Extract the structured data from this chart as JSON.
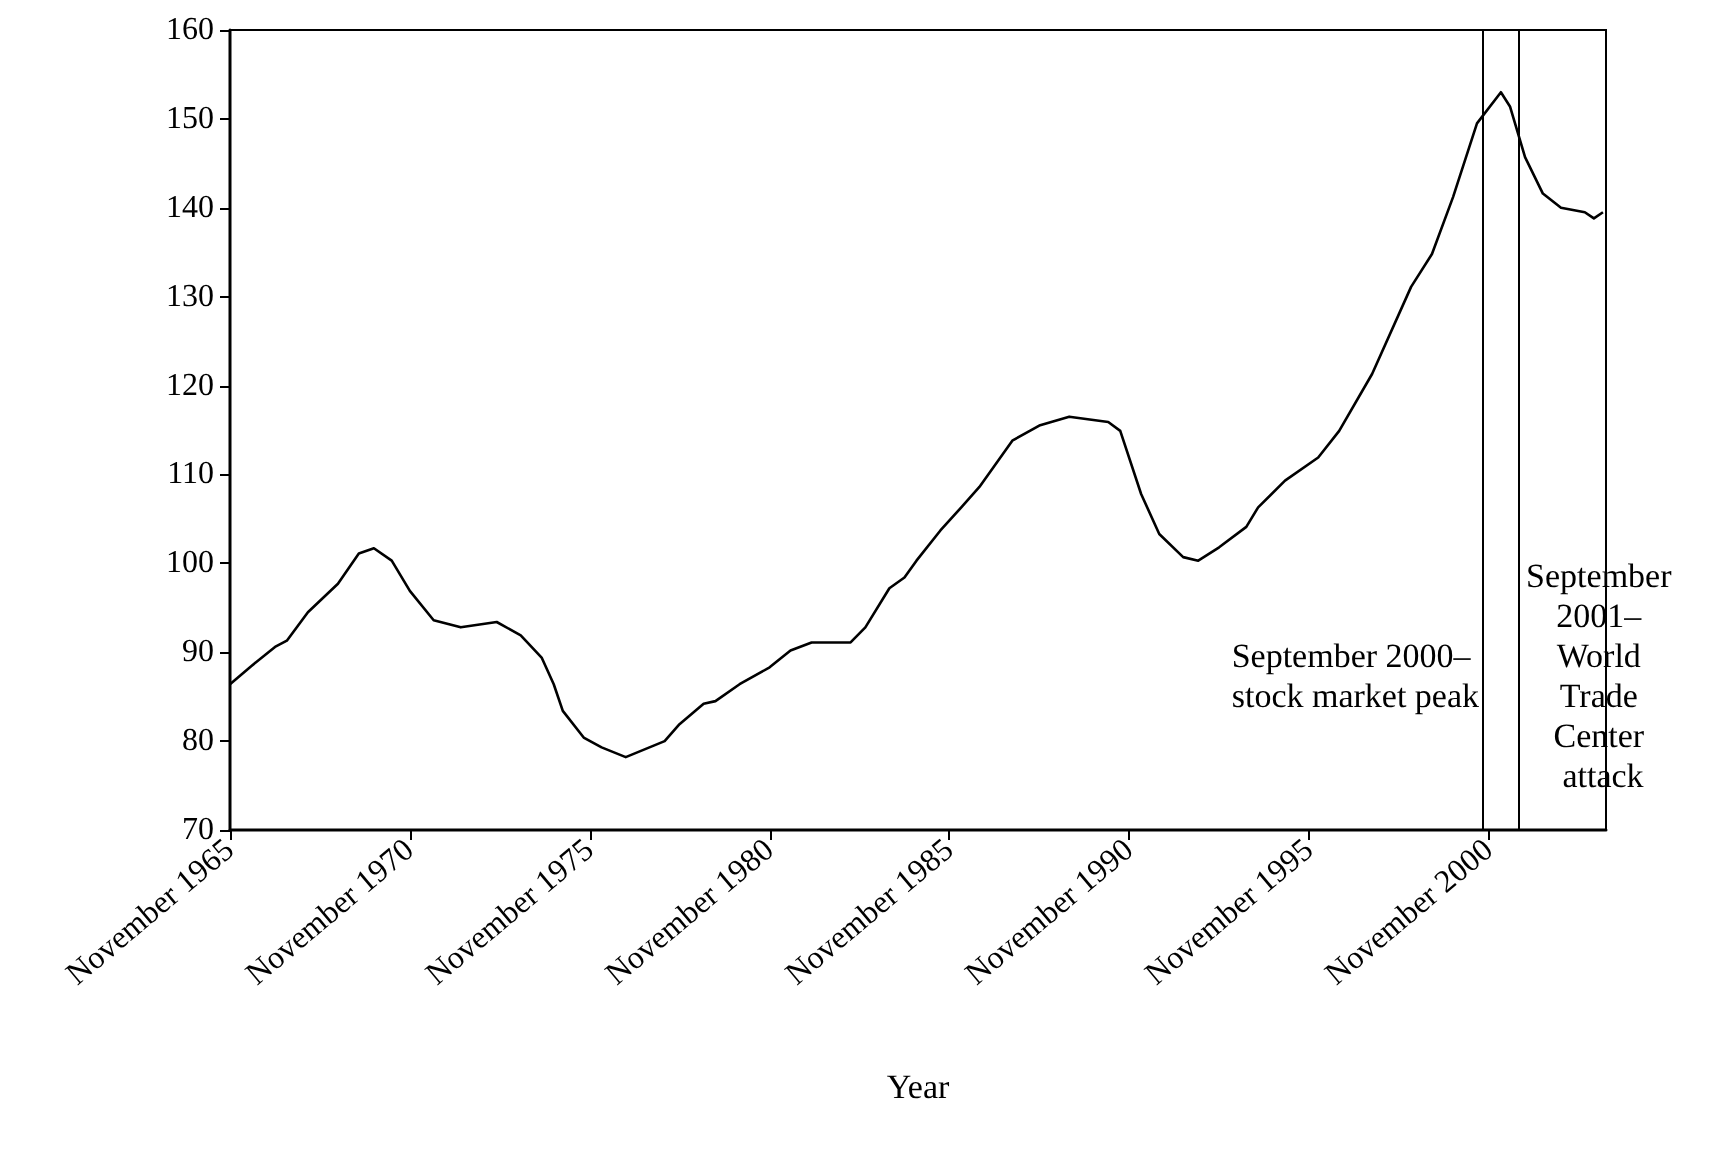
{
  "chart_data": {
    "type": "line",
    "xlabel": "Year",
    "x": [
      "1965-11",
      "1966-06",
      "1967-02",
      "1967-06",
      "1968-01",
      "1968-11",
      "1969-06",
      "1969-11",
      "1970-05",
      "1970-11",
      "1971-07",
      "1972-04",
      "1973-04",
      "1973-12",
      "1974-07",
      "1974-11",
      "1975-02",
      "1975-09",
      "1976-03",
      "1976-11",
      "1977-12",
      "1978-05",
      "1979-01",
      "1979-05",
      "1980-01",
      "1980-11",
      "1981-06",
      "1982-01",
      "1983-02",
      "1983-07",
      "1984-03",
      "1984-08",
      "1984-12",
      "1985-08",
      "1986-03",
      "1986-09",
      "1987-08",
      "1988-05",
      "1989-03",
      "1990-04",
      "1990-08",
      "1991-03",
      "1991-09",
      "1992-05",
      "1992-10",
      "1993-05",
      "1994-02",
      "1994-06",
      "1995-03",
      "1996-02",
      "1996-09",
      "1997-08",
      "1998-09",
      "1999-04",
      "1999-11",
      "2000-07",
      "2001-03",
      "2001-06",
      "2001-11",
      "2002-05",
      "2002-11",
      "2003-07",
      "2003-10",
      "2004-01"
    ],
    "series": [
      {
        "color": "#000000",
        "values": [
          86.4,
          88.4,
          90.6,
          91.3,
          94.5,
          97.7,
          101.1,
          101.7,
          100.3,
          96.9,
          93.6,
          92.8,
          93.4,
          91.9,
          89.4,
          86.4,
          83.4,
          80.4,
          79.3,
          78.2,
          80.0,
          81.9,
          84.2,
          84.5,
          86.4,
          88.3,
          90.2,
          91.1,
          91.1,
          92.8,
          97.2,
          98.4,
          100.3,
          103.7,
          106.3,
          108.6,
          113.8,
          115.5,
          116.5,
          115.9,
          114.9,
          107.8,
          103.3,
          100.7,
          100.3,
          101.8,
          104.1,
          106.3,
          109.3,
          111.9,
          114.9,
          121.3,
          131.1,
          134.8,
          141.2,
          149.5,
          153.0,
          151.4,
          145.7,
          141.6,
          140.0,
          139.5,
          138.8,
          139.5
        ]
      }
    ],
    "xlim": [
      "1965-11",
      "2004-02"
    ],
    "xticks": [
      {
        "value": "1965-11",
        "label": "November 1965"
      },
      {
        "value": "1970-11",
        "label": "November 1970"
      },
      {
        "value": "1975-11",
        "label": "November 1975"
      },
      {
        "value": "1980-11",
        "label": "November 1980"
      },
      {
        "value": "1985-11",
        "label": "November 1985"
      },
      {
        "value": "1990-11",
        "label": "November 1990"
      },
      {
        "value": "1995-11",
        "label": "November 1995"
      },
      {
        "value": "2000-11",
        "label": "November 2000"
      }
    ],
    "ylim": [
      70,
      160
    ],
    "yticks": [
      70,
      80,
      90,
      100,
      110,
      120,
      130,
      140,
      150,
      160
    ],
    "ref_lines": [
      {
        "axis": "x",
        "value": "2000-09",
        "label": "September 2000– stock market peak",
        "color": "#000000"
      },
      {
        "axis": "x",
        "value": "2001-09",
        "label": "September 2001– World Trade Center attack",
        "color": "#000000"
      }
    ],
    "grid": false,
    "marker": "none",
    "line_style": "solid"
  }
}
